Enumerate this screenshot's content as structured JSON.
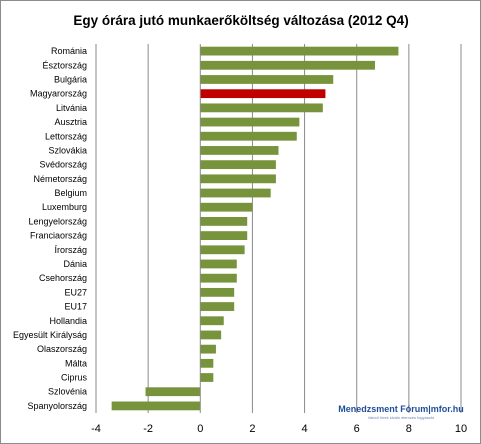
{
  "chart_data": {
    "type": "bar",
    "orientation": "horizontal",
    "title": "Egy órára jutó munkaerőköltség változása (2012 Q4)",
    "xlabel": "",
    "ylabel": "",
    "xlim": [
      -4,
      10
    ],
    "x_ticks": [
      "-4",
      "-2",
      "0",
      "2",
      "4",
      "6",
      "8",
      "10"
    ],
    "grid": "vertical",
    "legend": "none",
    "categories": [
      "Románia",
      "Észtország",
      "Bulgária",
      "Magyarország",
      "Litvánia",
      "Ausztria",
      "Lettország",
      "Szlovákia",
      "Svédország",
      "Németország",
      "Belgium",
      "Luxemburg",
      "Lengyelország",
      "Franciaország",
      "Írország",
      "Dánia",
      "Csehország",
      "EU27",
      "EU17",
      "Hollandia",
      "Egyesült Királyság",
      "Olaszország",
      "Málta",
      "Ciprus",
      "Szlovénia",
      "Spanyolország"
    ],
    "values": [
      7.6,
      6.7,
      5.1,
      4.8,
      4.7,
      3.8,
      3.7,
      3.0,
      2.9,
      2.9,
      2.7,
      2.0,
      1.8,
      1.8,
      1.7,
      1.4,
      1.4,
      1.3,
      1.3,
      0.9,
      0.8,
      0.6,
      0.5,
      0.5,
      -2.1,
      -3.4
    ],
    "colors": {
      "default": "#77933c",
      "highlight": "#c00000"
    },
    "highlight_category": "Magyarország"
  },
  "watermark": {
    "main": "Menedzsment Fórum|mfor.hu",
    "sub": "Valódi hírek kiváló elemzés fogyasztó"
  }
}
